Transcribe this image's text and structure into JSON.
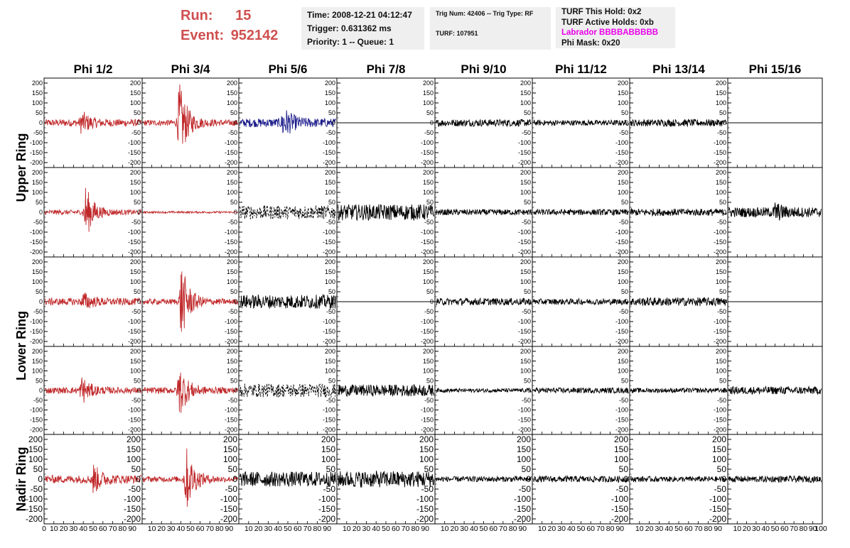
{
  "run_info": {
    "run_label": "Run:",
    "run_value": "15",
    "event_label": "Event:",
    "event_value": "952142"
  },
  "box_time": {
    "time": "Time: 2008-12-21 04:12:47",
    "trigger": "Trigger: 0.631362 ms",
    "priority": "Priority: 1 -- Queue: 1"
  },
  "box_trig": {
    "trig": "Trig Num: 42406 -- Trig Type: RF",
    "turf": "TURF: 107951"
  },
  "box_turf": {
    "this_hold": "TURF This Hold: 0x2",
    "active_holds": "TURF Active Holds: 0xb",
    "labrador": "Labrador BBBBABBBBB",
    "phi_mask": "Phi Mask: 0x20"
  },
  "colors": {
    "red": "#c0282a",
    "blue": "#1c1c8c",
    "black": "#000000",
    "magenta": "#e800e8",
    "run_text": "#d05050"
  },
  "chart_data": {
    "type": "line",
    "columns": [
      "Phi 1/2",
      "Phi 3/4",
      "Phi 5/6",
      "Phi 7/8",
      "Phi 9/10",
      "Phi 11/12",
      "Phi 13/14",
      "Phi 15/16"
    ],
    "ring_labels": [
      {
        "label": "Upper Ring",
        "rows": [
          0,
          1
        ]
      },
      {
        "label": "Lower Ring",
        "rows": [
          2,
          3
        ]
      },
      {
        "label": "Nadir Ring",
        "rows": [
          4
        ]
      }
    ],
    "xlim": [
      0,
      100
    ],
    "ylim": [
      -225,
      225
    ],
    "y_ticks": [
      200,
      150,
      100,
      50,
      0,
      -50,
      -100,
      -150,
      -200
    ],
    "nadir_y_ticks": [
      200,
      150,
      100,
      50,
      0,
      -50,
      -100,
      -150,
      -200
    ],
    "x_tick_labels_first": [
      "0",
      "10",
      "20",
      "30",
      "40",
      "50",
      "60",
      "70",
      "80",
      "90"
    ],
    "x_tick_labels": [
      "10",
      "20",
      "30",
      "40",
      "50",
      "60",
      "70",
      "80",
      "90"
    ],
    "x_tick_last": "100",
    "panels": [
      [
        {
          "color": "red",
          "style": "solid",
          "base": 18,
          "burst": [
            38,
            55,
            0
          ]
        },
        {
          "color": "red",
          "style": "solid",
          "base": 15,
          "burst": [
            38,
            210,
            0
          ]
        },
        {
          "color": "blue",
          "style": "solid",
          "base": 22,
          "burst": [
            45,
            80,
            0
          ]
        },
        {
          "color": "black",
          "style": "flat",
          "base": 0,
          "burst": null
        },
        {
          "color": "black",
          "style": "solid",
          "base": 18,
          "burst": null
        },
        {
          "color": "black",
          "style": "solid",
          "base": 14,
          "burst": null
        },
        {
          "color": "black",
          "style": "solid",
          "base": 18,
          "burst": null
        },
        {
          "color": "black",
          "style": "flat",
          "base": 0,
          "burst": null
        }
      ],
      [
        {
          "color": "red",
          "style": "solid",
          "base": 12,
          "burst": [
            42,
            140,
            0
          ]
        },
        {
          "color": "red",
          "style": "solid",
          "base": 5,
          "burst": null
        },
        {
          "color": "black",
          "style": "dashed",
          "base": 35,
          "burst": null
        },
        {
          "color": "black",
          "style": "solid",
          "base": 40,
          "burst": null
        },
        {
          "color": "black",
          "style": "solid",
          "base": 15,
          "burst": null
        },
        {
          "color": "black",
          "style": "solid",
          "base": 15,
          "burst": null
        },
        {
          "color": "black",
          "style": "solid",
          "base": 18,
          "burst": null
        },
        {
          "color": "black",
          "style": "solid",
          "base": 25,
          "burst": [
            50,
            35,
            0
          ]
        }
      ],
      [
        {
          "color": "red",
          "style": "solid",
          "base": 18,
          "burst": [
            40,
            40,
            0
          ]
        },
        {
          "color": "red",
          "style": "solid",
          "base": 14,
          "burst": [
            40,
            200,
            0
          ]
        },
        {
          "color": "black",
          "style": "solid",
          "base": 35,
          "burst": null
        },
        {
          "color": "black",
          "style": "flat",
          "base": 0,
          "burst": null
        },
        {
          "color": "black",
          "style": "solid",
          "base": 18,
          "burst": null
        },
        {
          "color": "black",
          "style": "solid",
          "base": 15,
          "burst": null
        },
        {
          "color": "black",
          "style": "solid",
          "base": 22,
          "burst": null
        },
        {
          "color": "black",
          "style": "flat",
          "base": 0,
          "burst": null
        }
      ],
      [
        {
          "color": "red",
          "style": "solid",
          "base": 16,
          "burst": [
            38,
            70,
            0
          ]
        },
        {
          "color": "red",
          "style": "solid",
          "base": 16,
          "burst": [
            38,
            140,
            0
          ]
        },
        {
          "color": "black",
          "style": "dashed",
          "base": 35,
          "burst": null
        },
        {
          "color": "black",
          "style": "solid",
          "base": 30,
          "burst": null
        },
        {
          "color": "black",
          "style": "solid",
          "base": 10,
          "burst": null
        },
        {
          "color": "black",
          "style": "solid",
          "base": 14,
          "burst": null
        },
        {
          "color": "black",
          "style": "solid",
          "base": 12,
          "burst": null
        },
        {
          "color": "black",
          "style": "solid",
          "base": 20,
          "burst": null
        }
      ],
      [
        {
          "color": "red",
          "style": "solid",
          "base": 20,
          "burst": [
            50,
            70,
            0
          ]
        },
        {
          "color": "red",
          "style": "solid",
          "base": 14,
          "burst": [
            45,
            170,
            0
          ]
        },
        {
          "color": "black",
          "style": "solid",
          "base": 38,
          "burst": null
        },
        {
          "color": "black",
          "style": "solid",
          "base": 42,
          "burst": null
        },
        {
          "color": "black",
          "style": "solid",
          "base": 14,
          "burst": null
        },
        {
          "color": "black",
          "style": "solid",
          "base": 16,
          "burst": null
        },
        {
          "color": "black",
          "style": "solid",
          "base": 14,
          "burst": null
        },
        {
          "color": "black",
          "style": "solid",
          "base": 16,
          "burst": null
        }
      ]
    ]
  }
}
